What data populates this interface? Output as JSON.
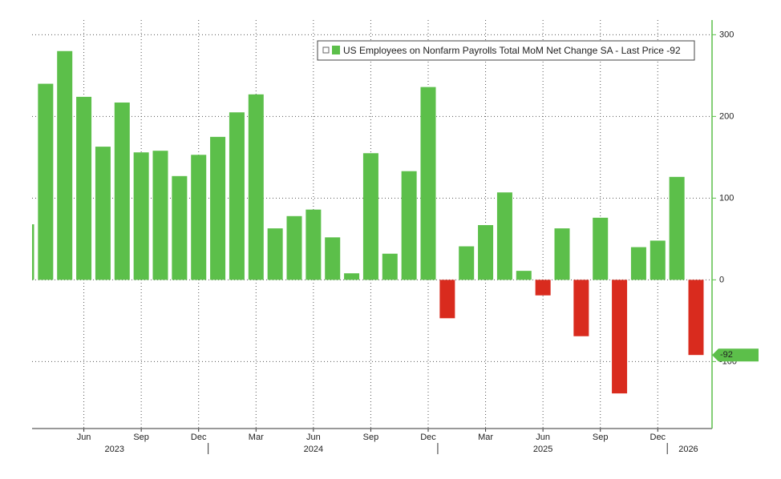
{
  "chart_data": {
    "type": "bar",
    "legend": "US Employees on Nonfarm Payrolls Total MoM Net Change SA - Last Price -92",
    "categories": [
      null,
      null,
      null,
      "Jun",
      null,
      null,
      "Sep",
      null,
      null,
      "Dec",
      null,
      null,
      "Mar",
      null,
      null,
      "Jun",
      null,
      null,
      "Sep",
      null,
      null,
      "Dec",
      null,
      null,
      "Mar",
      null,
      null,
      "Jun",
      null,
      null,
      "Sep",
      null,
      null,
      "Dec",
      null,
      null
    ],
    "years": [
      "2023",
      "2024",
      "2025",
      "2026"
    ],
    "values": [
      68,
      240,
      280,
      224,
      163,
      217,
      156,
      158,
      127,
      153,
      175,
      205,
      227,
      63,
      78,
      86,
      52,
      8,
      155,
      32,
      133,
      236,
      -47,
      41,
      67,
      107,
      11,
      -19,
      63,
      -69,
      76,
      -139,
      40,
      48,
      126,
      -92
    ],
    "color": "#5cbf4a",
    "negative_color": "#d92b1e",
    "ylim": [
      -182,
      318
    ],
    "yticks": [
      -100,
      0,
      100,
      200,
      300
    ],
    "grid": true,
    "y_axis_side": "right"
  }
}
